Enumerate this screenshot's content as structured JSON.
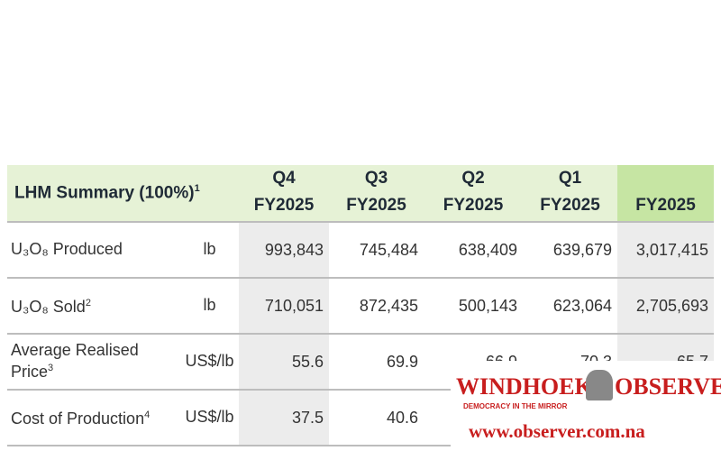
{
  "table": {
    "header": {
      "title": "LHM Summary (100%)",
      "note": "1",
      "columns": [
        [
          "Q4",
          "FY2025"
        ],
        [
          "Q3",
          "FY2025"
        ],
        [
          "Q2",
          "FY2025"
        ],
        [
          "Q1",
          "FY2025"
        ],
        [
          "FY2025"
        ]
      ]
    },
    "rows": [
      {
        "label": "U₃O₈ Produced",
        "unit": "lb",
        "cells": [
          "993,843",
          "745,484",
          "638,409",
          "639,679",
          "3,017,415"
        ]
      },
      {
        "label": "U₃O₈ Sold",
        "note": "2",
        "unit": "lb",
        "cells": [
          "710,051",
          "872,435",
          "500,143",
          "623,064",
          "2,705,693"
        ]
      },
      {
        "label": "Average Realised Price",
        "note": "3",
        "unit": "US$/lb",
        "cells": [
          "55.6",
          "69.9",
          "66.9",
          "70.3",
          "65.7"
        ]
      },
      {
        "label": "Cost of Production",
        "note": "4",
        "unit": "US$/lb",
        "cells": [
          "37.5",
          "40.6"
        ]
      }
    ]
  },
  "watermark": {
    "name_left": "WINDHOEK",
    "name_right": "OBSERVER",
    "tagline": "DEMOCRACY IN THE MIRROR",
    "url": "www.observer.com.na"
  }
}
